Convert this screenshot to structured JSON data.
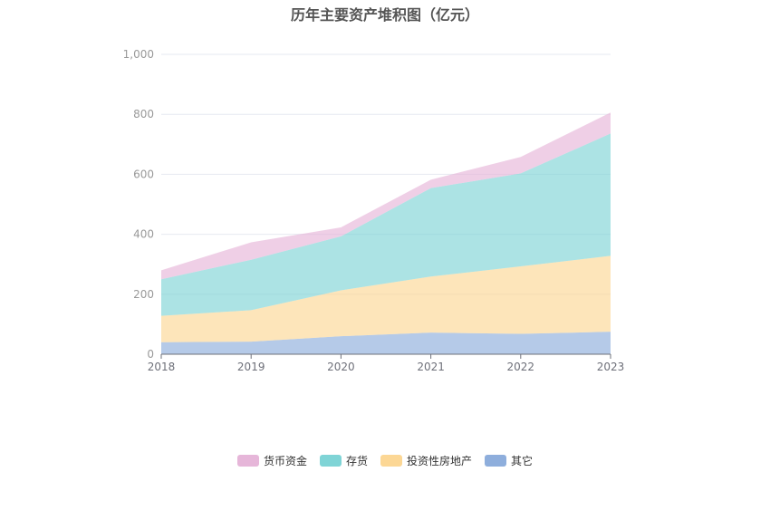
{
  "chart_data": {
    "type": "area",
    "stacked": true,
    "title": "历年主要资产堆积图（亿元）",
    "categories": [
      "2018",
      "2019",
      "2020",
      "2021",
      "2022",
      "2023"
    ],
    "ylim": [
      0,
      1000
    ],
    "yticks": [
      "0",
      "200",
      "400",
      "600",
      "800",
      "1,000"
    ],
    "grid": true,
    "legend_position": "bottom",
    "series": [
      {
        "name": "其它",
        "values": [
          40,
          42,
          60,
          72,
          68,
          75
        ],
        "color": "#8eaedc"
      },
      {
        "name": "投资性房地产",
        "values": [
          88,
          105,
          153,
          187,
          225,
          253
        ],
        "color": "#fcd795"
      },
      {
        "name": "存货",
        "values": [
          122,
          168,
          180,
          295,
          310,
          408
        ],
        "color": "#7fd4d6"
      },
      {
        "name": "货币资金",
        "values": [
          30,
          58,
          30,
          28,
          55,
          70
        ],
        "color": "#e6b6d9"
      }
    ],
    "legend_order": [
      3,
      2,
      1,
      0
    ]
  }
}
